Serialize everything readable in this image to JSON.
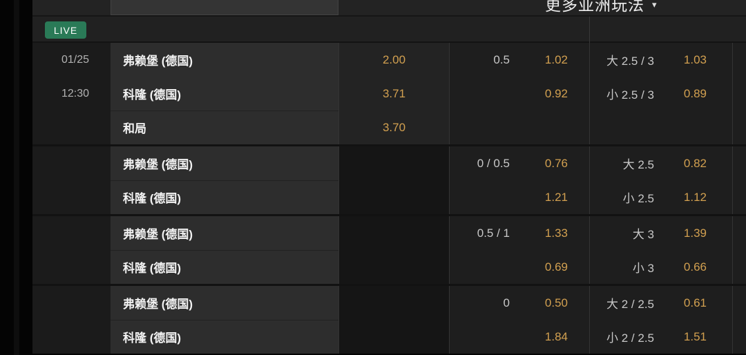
{
  "colors": {
    "odds_gold": "#d2a050",
    "live_green": "#2a7a57",
    "panel_dark": "#1e1e1e"
  },
  "topbar": {
    "more_menu_label": "更多亚洲玩法",
    "caret_icon": "▾"
  },
  "live_row": {
    "badge_label": "LIVE"
  },
  "table": {
    "blocks": [
      {
        "rows": [
          {
            "gutter": "01/25",
            "team": "弗赖堡 (德国)",
            "win_odds": "2.00",
            "hcp_line": "0.5",
            "hcp_odds": "1.02",
            "ou_line": "大 2.5 / 3",
            "ou_odds": "1.03"
          },
          {
            "gutter": "12:30",
            "team": "科隆 (德国)",
            "win_odds": "3.71",
            "hcp_line": "",
            "hcp_odds": "0.92",
            "ou_line": "小 2.5 / 3",
            "ou_odds": "0.89"
          },
          {
            "gutter": "",
            "team": "和局",
            "win_odds": "3.70",
            "hcp_line": "",
            "hcp_odds": "",
            "ou_line": "",
            "ou_odds": ""
          }
        ]
      },
      {
        "rows": [
          {
            "gutter": "",
            "team": "弗赖堡 (德国)",
            "win_odds": "",
            "hcp_line": "0 / 0.5",
            "hcp_odds": "0.76",
            "ou_line": "大 2.5",
            "ou_odds": "0.82"
          },
          {
            "gutter": "",
            "team": "科隆 (德国)",
            "win_odds": "",
            "hcp_line": "",
            "hcp_odds": "1.21",
            "ou_line": "小 2.5",
            "ou_odds": "1.12"
          }
        ]
      },
      {
        "rows": [
          {
            "gutter": "",
            "team": "弗赖堡 (德国)",
            "win_odds": "",
            "hcp_line": "0.5 / 1",
            "hcp_odds": "1.33",
            "ou_line": "大 3",
            "ou_odds": "1.39"
          },
          {
            "gutter": "",
            "team": "科隆 (德国)",
            "win_odds": "",
            "hcp_line": "",
            "hcp_odds": "0.69",
            "ou_line": "小 3",
            "ou_odds": "0.66"
          }
        ]
      },
      {
        "rows": [
          {
            "gutter": "",
            "team": "弗赖堡 (德国)",
            "win_odds": "",
            "hcp_line": "0",
            "hcp_odds": "0.50",
            "ou_line": "大 2 / 2.5",
            "ou_odds": "0.61"
          },
          {
            "gutter": "",
            "team": "科隆 (德国)",
            "win_odds": "",
            "hcp_line": "",
            "hcp_odds": "1.84",
            "ou_line": "小 2 / 2.5",
            "ou_odds": "1.51"
          }
        ]
      }
    ]
  }
}
